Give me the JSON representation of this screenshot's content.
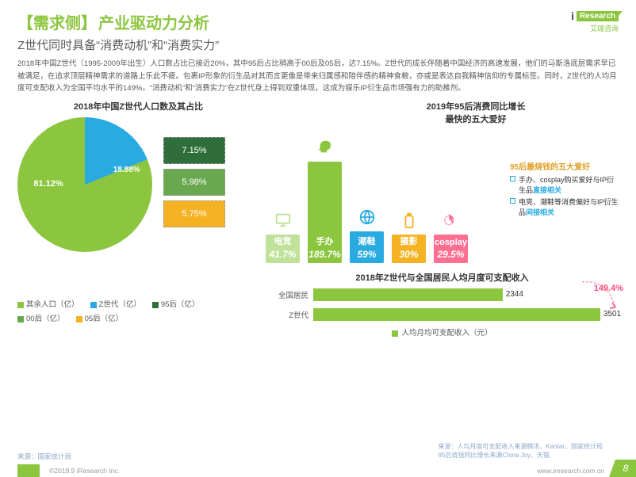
{
  "brand": {
    "prefix": "iResearch",
    "box": "Research",
    "i": "i",
    "sub": "艾瑞咨询"
  },
  "title": {
    "bracket": "【需求侧】",
    "main": "产业驱动力分析"
  },
  "subtitle": "Z世代同时具备“消费动机”和“消费实力”",
  "paragraph": "2018年中国Z世代（1995-2009年出生）人口数占比已接近20%，其中95后占比稍高于00后及05后，达7.15%。Z世代的成长伴随着中国经济的高速发展，他们的马斯洛底层需求早已被满足，在追求顶层精神需求的道路上乐此不疲。包裹IP形象的衍生品对其而言更像是带来归属感和陪伴感的精神食粮，亦或是表达自我精神信仰的专属标签。同时，Z世代的人均月度可支配收入为全国平均水平的149%，“消费动机”和“消费实力”在Z世代身上得到双重体现，这成为娱乐IP衍生品市场强有力的助推剂。",
  "pie": {
    "title": "2018年中国Z世代人口数及其占比",
    "main_color": "#8cc63f",
    "slice_color": "#29abe2",
    "main_pct": "81.12%",
    "slice_pct": "18.88%",
    "breakdown": [
      {
        "label": "7.15%",
        "bg": "#2f6e3a"
      },
      {
        "label": "5.98%",
        "bg": "#6aa84f"
      },
      {
        "label": "5.75%",
        "bg": "#f5b324"
      }
    ],
    "legend": [
      {
        "label": "其余人口（亿）",
        "color": "#8cc63f"
      },
      {
        "label": "Z世代（亿）",
        "color": "#29abe2"
      },
      {
        "label": "95后（亿）",
        "color": "#2f6e3a"
      },
      {
        "label": "00后（亿）",
        "color": "#6aa84f"
      },
      {
        "label": "05后（亿）",
        "color": "#f5b324"
      }
    ]
  },
  "hobbies": {
    "title": "2019年95后消费同比增长\n最快的五大爱好",
    "max_pct": 189.7,
    "max_height": 128,
    "bars": [
      {
        "name": "电竞",
        "pct_label": "41.7%",
        "pct": 41.7,
        "color": "#bfe19a",
        "icon": "monitor"
      },
      {
        "name": "手办",
        "pct_label": "189.7%",
        "pct": 189.7,
        "color": "#8cc63f",
        "icon": "head",
        "top_label": "手办",
        "top_color": "#ffffff",
        "top_bg": "#8cc63f"
      },
      {
        "name": "潮鞋",
        "pct_label": "59%",
        "pct": 59,
        "color": "#29abe2",
        "icon": "globe"
      },
      {
        "name": "摄影",
        "pct_label": "30%",
        "pct": 30,
        "color": "#f5b324",
        "icon": "bottle"
      },
      {
        "name": "cosplay",
        "pct_label": "29.5%",
        "pct": 29.5,
        "color": "#ff6f91",
        "icon": "pointer"
      }
    ],
    "aside": {
      "title": "95后最烧钱的五大爱好",
      "lines": [
        {
          "color": "#29abe2",
          "text_a": "手办、cosplay购买爱好与IP衍生品",
          "em": "直接相关"
        },
        {
          "color": "#29abe2",
          "text_a": "电竞、潮鞋等消费偏好与IP衍生品",
          "em": "间接相关"
        }
      ]
    }
  },
  "income": {
    "title": "2018年Z世代与全国居民人均月度可支配收入",
    "bar_color": "#8cc63f",
    "rows": [
      {
        "label": "全国居民",
        "value": 2344,
        "width_pct": 62
      },
      {
        "label": "Z世代",
        "value": 3501,
        "width_pct": 94
      }
    ],
    "growth": "149.4%",
    "growth_color": "#ff4d7d",
    "legend": "人均月均可支配收入（元）"
  },
  "sources": {
    "left": "来源：国家统计局",
    "right_line1": "来源：人均月度可支配收入来源腾讯、Kantar、国家统计局",
    "right_line2": "95后烧钱同比增长来源China Joy、天猫"
  },
  "footer": {
    "copyright": "©2019.9 iResearch Inc.",
    "url": "www.iresearch.com.cn",
    "page": "8"
  }
}
